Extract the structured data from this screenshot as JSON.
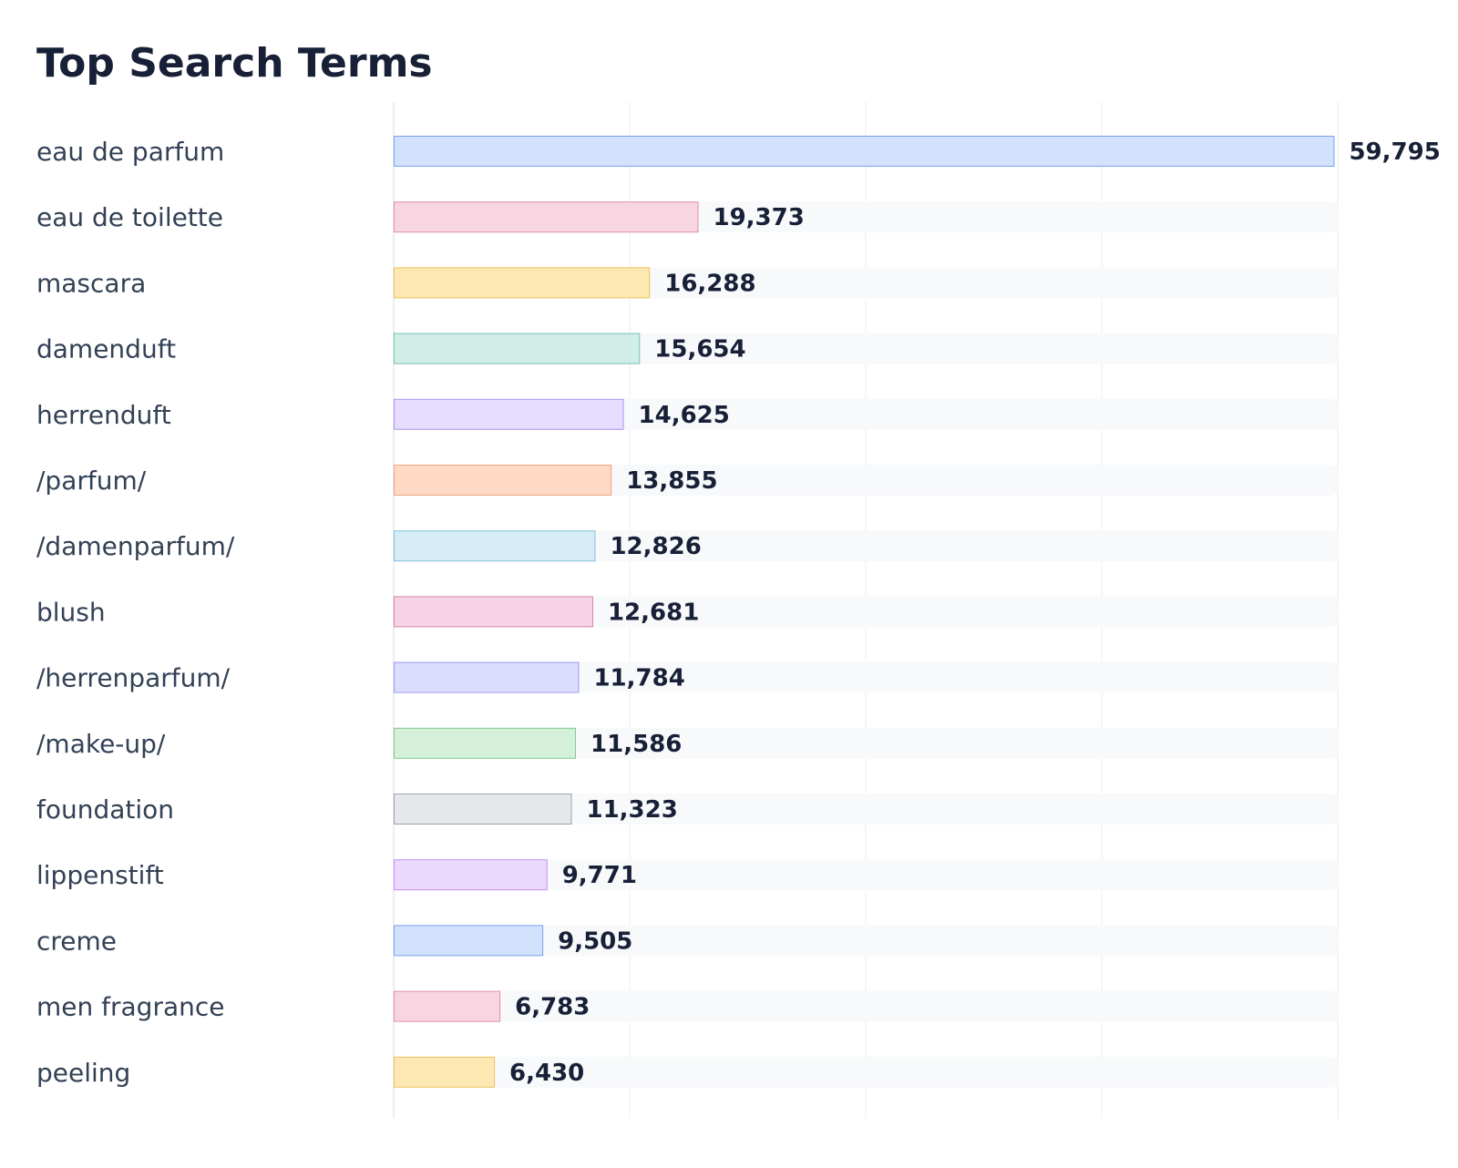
{
  "chart_data": {
    "type": "bar",
    "orientation": "horizontal",
    "title": "Top Search Terms",
    "xlabel": "",
    "ylabel": "",
    "xlim": [
      0,
      60000
    ],
    "grid": true,
    "categories": [
      "eau de parfum",
      "eau de toilette",
      "mascara",
      "damenduft",
      "herrenduft",
      "/parfum/",
      "/damenparfum/",
      "blush",
      "/herrenparfum/",
      "/make-up/",
      "foundation",
      "lippenstift",
      "creme",
      "men fragrance",
      "peeling"
    ],
    "values": [
      59795,
      19373,
      16288,
      15654,
      14625,
      13855,
      12826,
      12681,
      11784,
      11586,
      11323,
      9771,
      9505,
      6783,
      6430
    ],
    "value_labels": [
      "59,795",
      "19,373",
      "16,288",
      "15,654",
      "14,625",
      "13,855",
      "12,826",
      "12,681",
      "11,784",
      "11,586",
      "11,323",
      "9,771",
      "9,505",
      "6,783",
      "6,430"
    ],
    "bar_fills": [
      "#d2e1fc",
      "#f8d6e1",
      "#fde7b2",
      "#d0eee7",
      "#e5dcfe",
      "#fed9c5",
      "#d6ecf7",
      "#f6d4e6",
      "#dbdcfe",
      "#d5f0d9",
      "#e5e7ea",
      "#ead9fd",
      "#d2e1fc",
      "#f8d6e1",
      "#fde7b2"
    ],
    "bar_strokes": [
      "#79a3e8",
      "#df8fa8",
      "#eac45d",
      "#77c4b1",
      "#ad94ec",
      "#efa47c",
      "#86bfdb",
      "#d883ad",
      "#9a9cef",
      "#80c98d",
      "#9da2ab",
      "#c393ea",
      "#79a3e8",
      "#df8fa8",
      "#eac45d"
    ],
    "track_color": "#f8f9fb",
    "grid_color": "#ececec"
  }
}
